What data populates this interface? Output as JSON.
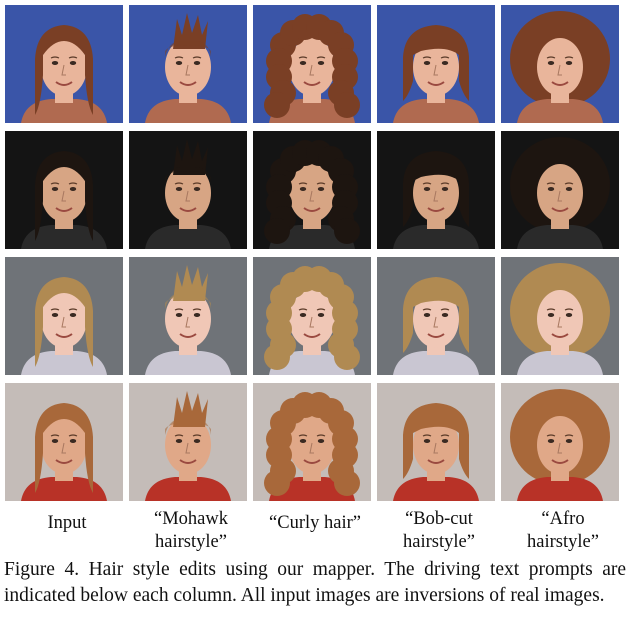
{
  "figure": {
    "column_labels": [
      "Input",
      "“Mohawk\nhairstyle”",
      "“Curly hair”",
      "“Bob-cut\nhairstyle”",
      "“Afro\nhairstyle”"
    ],
    "caption": "Figure 4. Hair style edits using our mapper.  The driving text prompts are indicated below each column.  All input images are inversions of real images.",
    "rows": [
      {
        "bg": "#3a55a8",
        "skin": "#e9b59b",
        "hair": "#7a3f25",
        "shirt": "#b06a50"
      },
      {
        "bg": "#141414",
        "skin": "#d7a584",
        "hair": "#1d1510",
        "shirt": "#2a2a2a"
      },
      {
        "bg": "#6f7378",
        "skin": "#f0c7b6",
        "hair": "#b08a52",
        "shirt": "#c9c6d2"
      },
      {
        "bg": "#c4bcb8",
        "skin": "#e0a888",
        "hair": "#a8683a",
        "shirt": "#b83227"
      }
    ],
    "column_styles": [
      "input",
      "mohawk",
      "curly",
      "bob",
      "afro"
    ]
  }
}
